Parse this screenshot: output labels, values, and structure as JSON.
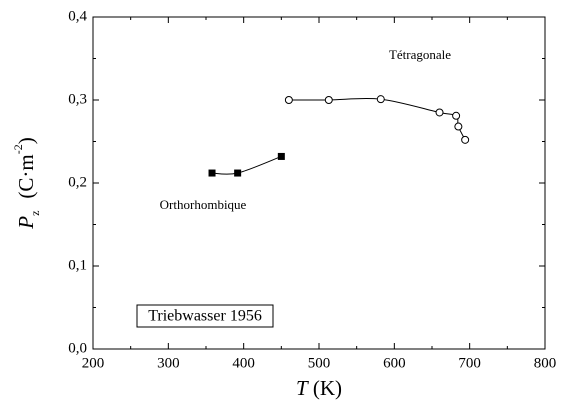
{
  "chart_data": {
    "type": "line",
    "xlabel": {
      "symbol": "T",
      "unit": "(K)"
    },
    "ylabel": {
      "symbol": "P",
      "subscript": "z",
      "unit": "(C·m",
      "unit_exponent": "-2",
      "unit_close": ")"
    },
    "series": [
      {
        "name": "Orthorhombique",
        "marker": "square",
        "color": "#000000",
        "x": [
          358,
          392,
          450
        ],
        "values": [
          0.212,
          0.212,
          0.232
        ]
      },
      {
        "name": "Tétragonale",
        "marker": "circle",
        "color": "#000000",
        "x": [
          460,
          513,
          582,
          660,
          682,
          685,
          694
        ],
        "values": [
          0.3,
          0.3,
          0.301,
          0.285,
          0.281,
          0.268,
          0.252
        ]
      }
    ],
    "legend_box": "Triebwasser 1956",
    "xlim": [
      200,
      800
    ],
    "xticks": [
      200,
      300,
      400,
      500,
      600,
      700,
      800
    ],
    "ylim": [
      0,
      0.4
    ],
    "yticks": [
      {
        "value": 0,
        "label": "0,0"
      },
      {
        "value": 0.1,
        "label": "0,1"
      },
      {
        "value": 0.2,
        "label": "0,2"
      },
      {
        "value": 0.3,
        "label": "0,3"
      },
      {
        "value": 0.4,
        "label": "0,4"
      }
    ]
  }
}
